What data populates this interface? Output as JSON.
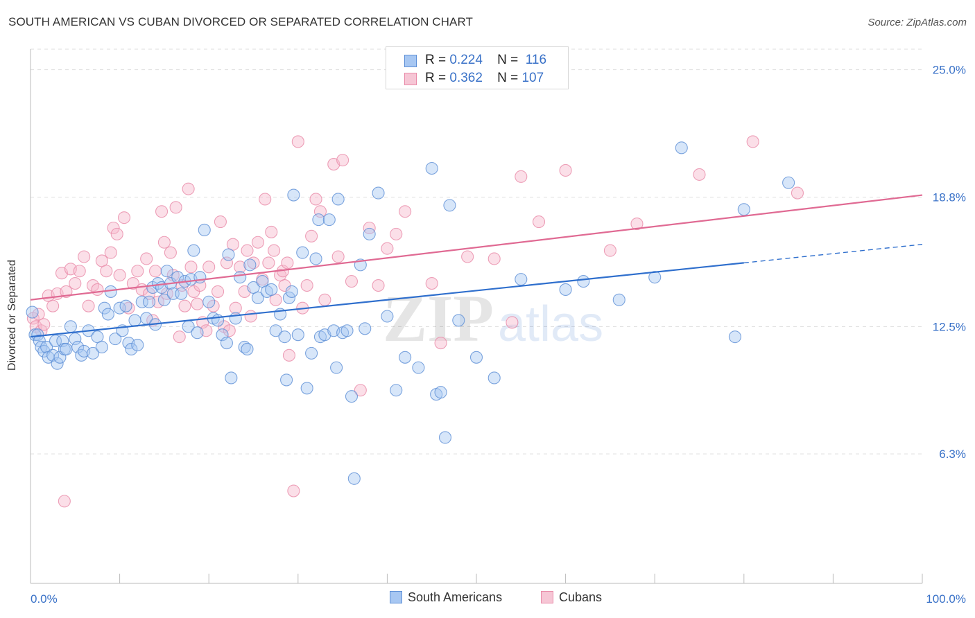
{
  "title": "SOUTH AMERICAN VS CUBAN DIVORCED OR SEPARATED CORRELATION CHART",
  "source": "Source: ZipAtlas.com",
  "watermark": {
    "zip": "ZIP",
    "atlas": "atlas"
  },
  "legend": {
    "rows": [
      {
        "r_label": "R =",
        "r_value": "0.224",
        "n_label": "N =",
        "n_value": "116"
      },
      {
        "r_label": "R =",
        "r_value": "0.362",
        "n_label": "N =",
        "n_value": "107"
      }
    ]
  },
  "colors": {
    "blue_fill": "#a7c7f2",
    "blue_stroke": "#5d8fd6",
    "blue_line": "#2f6fcd",
    "pink_fill": "#f6b8cc",
    "pink_stroke": "#e98aa8",
    "pink_line": "#e06a93",
    "tick_label": "#3a72c8",
    "grid": "#dddddd"
  },
  "chart_data": {
    "type": "scatter",
    "title": "SOUTH AMERICAN VS CUBAN DIVORCED OR SEPARATED CORRELATION CHART",
    "xlabel": "",
    "ylabel": "Divorced or Separated",
    "xlim": [
      0,
      100
    ],
    "ylim": [
      0,
      26
    ],
    "x_tick_labels": [
      "0.0%",
      "100.0%"
    ],
    "y_ticks": [
      6.3,
      12.5,
      18.8,
      25.0
    ],
    "y_tick_labels": [
      "6.3%",
      "12.5%",
      "18.8%",
      "25.0%"
    ],
    "grid": "horizontal dashed",
    "legend_position": "top-center",
    "series": [
      {
        "name": "South Americans",
        "r": 0.224,
        "n": 116,
        "trend": {
          "x": [
            0,
            80,
            100
          ],
          "y": [
            12.0,
            15.6,
            16.5
          ],
          "dashed_from": 80
        },
        "points": [
          [
            0.2,
            13.2
          ],
          [
            0.5,
            12.1
          ],
          [
            0.8,
            12.1
          ],
          [
            1,
            11.8
          ],
          [
            1.2,
            11.5
          ],
          [
            1.5,
            11.3
          ],
          [
            1.8,
            11.5
          ],
          [
            2,
            11.0
          ],
          [
            2.5,
            11.1
          ],
          [
            2.8,
            11.8
          ],
          [
            3,
            10.7
          ],
          [
            3.3,
            11.0
          ],
          [
            3.6,
            11.8
          ],
          [
            3.8,
            11.4
          ],
          [
            4,
            11.4
          ],
          [
            4.5,
            12.5
          ],
          [
            5,
            11.9
          ],
          [
            5.3,
            11.5
          ],
          [
            5.7,
            11.1
          ],
          [
            6,
            11.3
          ],
          [
            6.5,
            12.3
          ],
          [
            7,
            11.2
          ],
          [
            7.5,
            12.0
          ],
          [
            8,
            11.5
          ],
          [
            8.3,
            13.4
          ],
          [
            8.7,
            13.1
          ],
          [
            9,
            14.2
          ],
          [
            9.5,
            11.9
          ],
          [
            10,
            13.4
          ],
          [
            10.3,
            12.3
          ],
          [
            10.7,
            13.5
          ],
          [
            11,
            11.7
          ],
          [
            11.3,
            11.4
          ],
          [
            11.7,
            12.8
          ],
          [
            12,
            11.6
          ],
          [
            12.5,
            13.7
          ],
          [
            13,
            12.9
          ],
          [
            13.3,
            13.7
          ],
          [
            13.7,
            14.4
          ],
          [
            14,
            12.6
          ],
          [
            14.3,
            14.6
          ],
          [
            14.7,
            14.4
          ],
          [
            15,
            13.8
          ],
          [
            15.3,
            15.2
          ],
          [
            15.7,
            14.6
          ],
          [
            16,
            14.1
          ],
          [
            16.5,
            14.9
          ],
          [
            16.9,
            14.1
          ],
          [
            17.3,
            14.7
          ],
          [
            17.7,
            12.5
          ],
          [
            18,
            14.8
          ],
          [
            18.3,
            16.2
          ],
          [
            18.7,
            12.2
          ],
          [
            19,
            14.9
          ],
          [
            19.5,
            17.2
          ],
          [
            20,
            13.7
          ],
          [
            20.5,
            12.9
          ],
          [
            21,
            12.8
          ],
          [
            21.5,
            12.1
          ],
          [
            22,
            11.7
          ],
          [
            22.2,
            16.0
          ],
          [
            22.5,
            10.0
          ],
          [
            23,
            12.9
          ],
          [
            23.5,
            14.9
          ],
          [
            24,
            11.5
          ],
          [
            24.3,
            11.4
          ],
          [
            24.6,
            15.5
          ],
          [
            25,
            14.4
          ],
          [
            25.5,
            13.9
          ],
          [
            26,
            14.7
          ],
          [
            26.5,
            14.2
          ],
          [
            27,
            14.3
          ],
          [
            27.5,
            12.3
          ],
          [
            28,
            13.1
          ],
          [
            28.5,
            12.0
          ],
          [
            28.7,
            9.9
          ],
          [
            29,
            13.9
          ],
          [
            29.3,
            14.2
          ],
          [
            29.5,
            18.9
          ],
          [
            30,
            12.1
          ],
          [
            30.5,
            16.1
          ],
          [
            31,
            9.5
          ],
          [
            31.5,
            11.2
          ],
          [
            32,
            15.8
          ],
          [
            32.3,
            17.7
          ],
          [
            32.5,
            12.0
          ],
          [
            33,
            12.1
          ],
          [
            33.5,
            17.7
          ],
          [
            34,
            12.3
          ],
          [
            34.3,
            10.5
          ],
          [
            34.5,
            18.7
          ],
          [
            35,
            12.2
          ],
          [
            35.5,
            12.3
          ],
          [
            36,
            9.1
          ],
          [
            36.3,
            5.1
          ],
          [
            37,
            15.5
          ],
          [
            37.5,
            12.4
          ],
          [
            38,
            17.0
          ],
          [
            39,
            19.0
          ],
          [
            40,
            13.0
          ],
          [
            41,
            9.4
          ],
          [
            42,
            11.0
          ],
          [
            43.5,
            10.5
          ],
          [
            45,
            20.2
          ],
          [
            45.5,
            9.2
          ],
          [
            46,
            9.3
          ],
          [
            46.5,
            7.1
          ],
          [
            47,
            18.4
          ],
          [
            48,
            12.8
          ],
          [
            50,
            11.0
          ],
          [
            52,
            10.0
          ],
          [
            55,
            14.8
          ],
          [
            60,
            14.3
          ],
          [
            62,
            14.7
          ],
          [
            66,
            13.8
          ],
          [
            70,
            14.9
          ],
          [
            73,
            21.2
          ],
          [
            79,
            12.0
          ],
          [
            80,
            18.2
          ],
          [
            85,
            19.5
          ]
        ]
      },
      {
        "name": "Cubans",
        "r": 0.362,
        "n": 107,
        "trend": {
          "x": [
            0,
            100
          ],
          "y": [
            13.8,
            18.9
          ]
        },
        "points": [
          [
            0.3,
            12.9
          ],
          [
            0.6,
            12.5
          ],
          [
            0.9,
            13.1
          ],
          [
            1.2,
            12.3
          ],
          [
            1.5,
            12.6
          ],
          [
            2,
            14.0
          ],
          [
            2.5,
            13.5
          ],
          [
            3,
            14.1
          ],
          [
            3.5,
            15.1
          ],
          [
            4,
            14.2
          ],
          [
            4.5,
            15.3
          ],
          [
            5,
            14.6
          ],
          [
            5.5,
            15.2
          ],
          [
            6,
            15.9
          ],
          [
            6.5,
            13.5
          ],
          [
            7,
            14.5
          ],
          [
            7.5,
            14.3
          ],
          [
            8,
            15.7
          ],
          [
            8.5,
            15.2
          ],
          [
            9,
            16.1
          ],
          [
            9.3,
            17.3
          ],
          [
            9.7,
            17.0
          ],
          [
            10,
            15.0
          ],
          [
            10.5,
            17.8
          ],
          [
            11,
            13.4
          ],
          [
            11.5,
            14.6
          ],
          [
            12,
            15.2
          ],
          [
            12.5,
            14.3
          ],
          [
            13,
            15.8
          ],
          [
            13.3,
            14.1
          ],
          [
            13.7,
            12.8
          ],
          [
            14,
            15.2
          ],
          [
            14.3,
            13.7
          ],
          [
            14.7,
            18.1
          ],
          [
            15,
            16.6
          ],
          [
            15.3,
            14.1
          ],
          [
            15.7,
            16.1
          ],
          [
            16,
            15.0
          ],
          [
            16.3,
            18.3
          ],
          [
            16.7,
            12.0
          ],
          [
            17,
            14.5
          ],
          [
            17.3,
            13.5
          ],
          [
            17.7,
            19.2
          ],
          [
            18,
            15.4
          ],
          [
            18.3,
            14.2
          ],
          [
            18.7,
            13.6
          ],
          [
            19,
            14.5
          ],
          [
            19.3,
            12.7
          ],
          [
            19.7,
            12.3
          ],
          [
            20,
            15.4
          ],
          [
            20.5,
            13.5
          ],
          [
            21,
            14.2
          ],
          [
            21.3,
            17.6
          ],
          [
            21.7,
            12.5
          ],
          [
            22,
            15.6
          ],
          [
            22.3,
            12.3
          ],
          [
            22.7,
            16.5
          ],
          [
            23,
            13.4
          ],
          [
            23.5,
            15.4
          ],
          [
            24,
            14.2
          ],
          [
            24.3,
            16.2
          ],
          [
            24.7,
            13.0
          ],
          [
            25,
            15.6
          ],
          [
            25.5,
            16.6
          ],
          [
            26,
            14.8
          ],
          [
            26.3,
            18.7
          ],
          [
            26.7,
            15.6
          ],
          [
            27,
            17.1
          ],
          [
            27.3,
            16.2
          ],
          [
            27.5,
            13.8
          ],
          [
            28,
            15.0
          ],
          [
            28.3,
            15.2
          ],
          [
            28.5,
            14.5
          ],
          [
            28.8,
            15.6
          ],
          [
            29,
            11.1
          ],
          [
            29.5,
            4.5
          ],
          [
            30,
            21.5
          ],
          [
            30.5,
            13.4
          ],
          [
            31,
            14.5
          ],
          [
            31.5,
            16.9
          ],
          [
            32,
            18.7
          ],
          [
            32.5,
            18.1
          ],
          [
            33,
            13.8
          ],
          [
            34,
            20.4
          ],
          [
            34.5,
            15.9
          ],
          [
            35,
            20.6
          ],
          [
            36,
            14.7
          ],
          [
            37,
            9.4
          ],
          [
            38,
            17.3
          ],
          [
            39,
            14.5
          ],
          [
            40,
            16.3
          ],
          [
            41,
            17.0
          ],
          [
            42,
            18.1
          ],
          [
            45,
            14.6
          ],
          [
            46,
            11.7
          ],
          [
            49,
            15.9
          ],
          [
            52,
            15.8
          ],
          [
            54,
            12.7
          ],
          [
            55,
            19.8
          ],
          [
            57,
            17.6
          ],
          [
            60,
            20.1
          ],
          [
            65,
            16.2
          ],
          [
            68,
            17.5
          ],
          [
            75,
            19.9
          ],
          [
            81,
            21.5
          ],
          [
            86,
            19.0
          ],
          [
            3.8,
            4.0
          ]
        ]
      }
    ]
  },
  "bottom_legend": [
    "South Americans",
    "Cubans"
  ]
}
